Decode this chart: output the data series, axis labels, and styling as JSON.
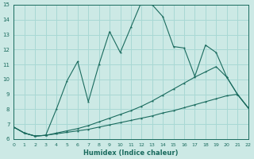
{
  "xlabel": "Humidex (Indice chaleur)",
  "xlim": [
    0,
    22
  ],
  "ylim": [
    6,
    15
  ],
  "yticks": [
    6,
    7,
    8,
    9,
    10,
    11,
    12,
    13,
    14,
    15
  ],
  "xticks": [
    0,
    1,
    2,
    3,
    4,
    5,
    6,
    7,
    8,
    9,
    10,
    11,
    12,
    13,
    14,
    15,
    16,
    17,
    18,
    19,
    20,
    21,
    22
  ],
  "bg_color": "#cce9e5",
  "line_color": "#1a6b5e",
  "grid_color": "#a8d8d4",
  "line1_y": [
    6.8,
    6.4,
    6.2,
    6.25,
    6.35,
    6.45,
    6.55,
    6.65,
    6.8,
    6.95,
    7.1,
    7.25,
    7.4,
    7.55,
    7.75,
    7.9,
    8.1,
    8.3,
    8.5,
    8.7,
    8.9,
    9.0,
    8.1
  ],
  "line2_y": [
    6.8,
    6.4,
    6.2,
    6.25,
    6.4,
    6.55,
    6.7,
    6.9,
    7.15,
    7.4,
    7.65,
    7.9,
    8.2,
    8.55,
    8.95,
    9.35,
    9.75,
    10.15,
    10.5,
    10.85,
    10.15,
    9.0,
    8.1
  ],
  "line3_y": [
    6.8,
    6.4,
    6.2,
    6.25,
    8.0,
    9.9,
    11.2,
    8.5,
    11.0,
    13.2,
    11.8,
    13.5,
    15.2,
    15.0,
    14.2,
    12.2,
    12.1,
    10.2,
    12.3,
    11.8,
    10.15,
    9.0,
    8.1
  ]
}
